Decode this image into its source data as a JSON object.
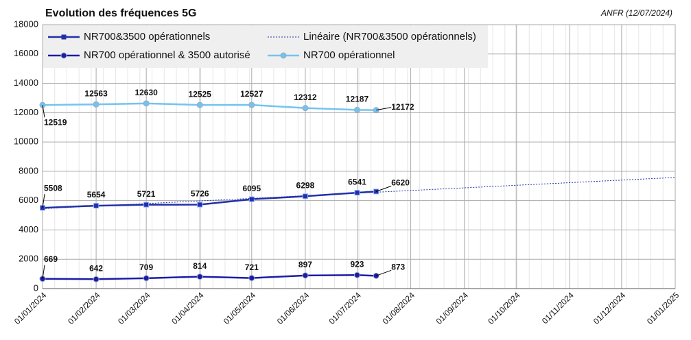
{
  "chart_data": {
    "type": "line",
    "title": "Evolution des fréquences 5G",
    "annotation": "ANFR (12/07/2024)",
    "x": [
      "01/01/2024",
      "01/02/2024",
      "01/03/2024",
      "01/04/2024",
      "01/05/2024",
      "01/06/2024",
      "01/07/2024",
      "12/07/2024"
    ],
    "series": [
      {
        "name": "NR700&3500 opérationnels",
        "color": "#2230a8",
        "marker": "square",
        "values": [
          5508,
          5654,
          5721,
          5726,
          6095,
          6298,
          6541,
          6620
        ]
      },
      {
        "name": "Linéaire (NR700&3500 opérationnels)",
        "color": "#2230a8",
        "dashed": true,
        "x": [
          "01/01/2024",
          "01/01/2025"
        ],
        "values": [
          5450,
          7580
        ]
      },
      {
        "name": "NR700 opérationnel & 3500 autorisé",
        "color": "#1c1ca8",
        "marker": "circle",
        "values": [
          669,
          642,
          709,
          814,
          721,
          897,
          923,
          873
        ]
      },
      {
        "name": "NR700 opérationnel",
        "color": "#72c4f0",
        "marker": "circle",
        "values": [
          12519,
          12563,
          12630,
          12525,
          12527,
          12312,
          12187,
          12172
        ]
      }
    ],
    "xlim": [
      "01/01/2024",
      "01/01/2025"
    ],
    "xticks": [
      "01/01/2024",
      "01/02/2024",
      "01/03/2024",
      "01/04/2024",
      "01/05/2024",
      "01/06/2024",
      "01/07/2024",
      "01/08/2024",
      "01/09/2024",
      "01/10/2024",
      "01/11/2024",
      "01/12/2024",
      "01/01/2025"
    ],
    "ylim": [
      0,
      18000
    ],
    "yticks": [
      0,
      2000,
      4000,
      6000,
      8000,
      10000,
      12000,
      14000,
      16000,
      18000
    ],
    "grid": true
  }
}
